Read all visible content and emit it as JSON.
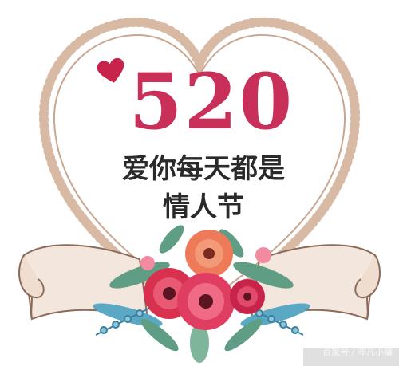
{
  "card": {
    "number": "520",
    "line1": "爱你每天都是",
    "line2": "情人节",
    "watermark": "百家号 / 非凡小编"
  },
  "colors": {
    "heart_border": "#c9a690",
    "number": "#c8305a",
    "text": "#2a2a2a",
    "accent_heart": "#c8234a",
    "ribbon": "#f3e6dc",
    "flower_red": "#d8304f",
    "flower_coral": "#ee7a5a",
    "leaf_green": "#5f9e85",
    "leaf_blue": "#5aa8c4"
  }
}
